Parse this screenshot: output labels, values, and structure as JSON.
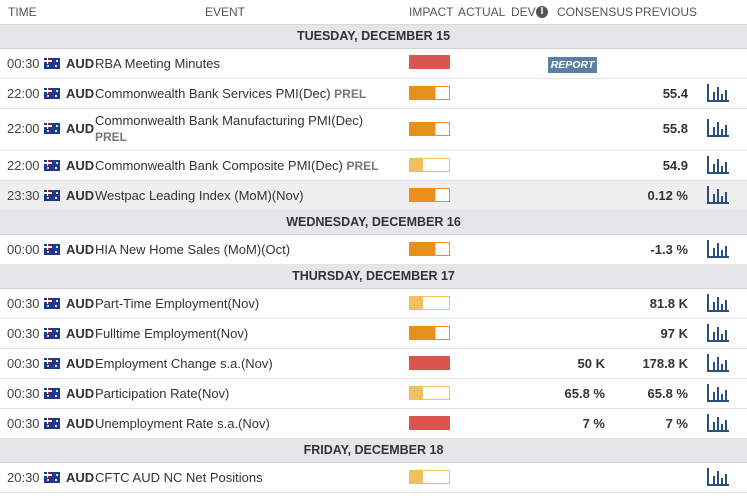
{
  "header": {
    "time": "TIME",
    "event": "EVENT",
    "impact": "IMPACT",
    "actual": "ACTUAL",
    "dev": "DEV",
    "consensus": "CONSENSUS",
    "previous": "PREVIOUS",
    "info_icon": "i"
  },
  "days": [
    {
      "label": "TUESDAY, DECEMBER 15"
    },
    {
      "label": "WEDNESDAY, DECEMBER 16"
    },
    {
      "label": "THURSDAY, DECEMBER 17"
    },
    {
      "label": "FRIDAY, DECEMBER 18"
    }
  ],
  "rows": [
    {
      "time": "00:30",
      "currency": "AUD",
      "event": "RBA Meeting Minutes",
      "prel": "",
      "impact": "high",
      "consensus": "",
      "previous": "",
      "report": "REPORT"
    },
    {
      "time": "22:00",
      "currency": "AUD",
      "event": "Commonwealth Bank Services PMI(Dec)",
      "prel": "PREL",
      "impact": "medium",
      "consensus": "",
      "previous": "55.4"
    },
    {
      "time": "22:00",
      "currency": "AUD",
      "event": "Commonwealth Bank Manufacturing PMI(Dec)",
      "prel": "PREL",
      "impact": "medium",
      "consensus": "",
      "previous": "55.8"
    },
    {
      "time": "22:00",
      "currency": "AUD",
      "event": "Commonwealth Bank Composite PMI(Dec)",
      "prel": "PREL",
      "impact": "low",
      "consensus": "",
      "previous": "54.9"
    },
    {
      "time": "23:30",
      "currency": "AUD",
      "event": "Westpac Leading Index (MoM)(Nov)",
      "prel": "",
      "impact": "medium",
      "consensus": "",
      "previous": "0.12 %"
    },
    {
      "time": "00:00",
      "currency": "AUD",
      "event": "HIA New Home Sales (MoM)(Oct)",
      "prel": "",
      "impact": "medium",
      "consensus": "",
      "previous": "-1.3 %"
    },
    {
      "time": "00:30",
      "currency": "AUD",
      "event": "Part-Time Employment(Nov)",
      "prel": "",
      "impact": "low",
      "consensus": "",
      "previous": "81.8 K"
    },
    {
      "time": "00:30",
      "currency": "AUD",
      "event": "Fulltime Employment(Nov)",
      "prel": "",
      "impact": "medium",
      "consensus": "",
      "previous": "97 K"
    },
    {
      "time": "00:30",
      "currency": "AUD",
      "event": "Employment Change s.a.(Nov)",
      "prel": "",
      "impact": "high",
      "consensus": "50 K",
      "previous": "178.8 K"
    },
    {
      "time": "00:30",
      "currency": "AUD",
      "event": "Participation Rate(Nov)",
      "prel": "",
      "impact": "low",
      "consensus": "65.8 %",
      "previous": "65.8 %"
    },
    {
      "time": "00:30",
      "currency": "AUD",
      "event": "Unemployment Rate s.a.(Nov)",
      "prel": "",
      "impact": "high",
      "consensus": "7 %",
      "previous": "7 %"
    },
    {
      "time": "20:30",
      "currency": "AUD",
      "event": "CFTC AUD NC Net Positions",
      "prel": "",
      "impact": "low",
      "consensus": "",
      "previous": ""
    }
  ],
  "colors": {
    "impact_high": "#d9544a",
    "impact_medium": "#e8901a",
    "impact_low": "#f0c060",
    "day_header_bg": "#e4e6e9",
    "report_badge": "#5b7fa6",
    "chart_icon": "#2a4f7a"
  }
}
